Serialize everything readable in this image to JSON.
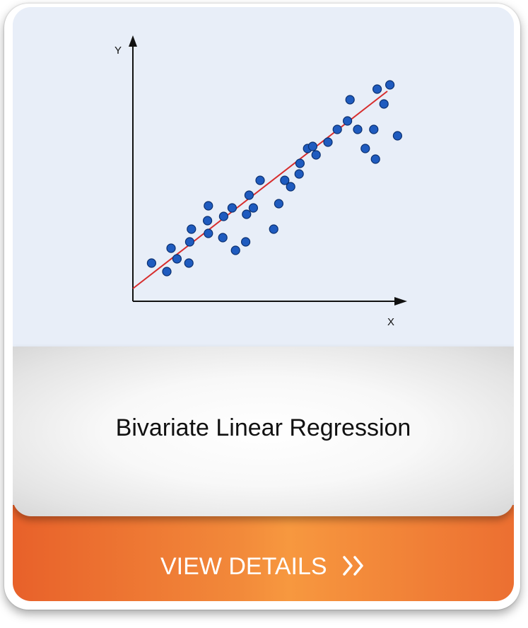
{
  "card": {
    "title": "Bivariate Linear Regression",
    "button_label": "VIEW DETAILS",
    "button_icon": "double-chevron-right-icon"
  },
  "chart_data": {
    "type": "scatter",
    "xlabel": "X",
    "ylabel": "Y",
    "points": [
      [
        22,
        18
      ],
      [
        40,
        14
      ],
      [
        45,
        25
      ],
      [
        52,
        20
      ],
      [
        66,
        18
      ],
      [
        67,
        28
      ],
      [
        69,
        34
      ],
      [
        88,
        38
      ],
      [
        89,
        32
      ],
      [
        89,
        45
      ],
      [
        106,
        30
      ],
      [
        107,
        40
      ],
      [
        117,
        44
      ],
      [
        121,
        24
      ],
      [
        133,
        28
      ],
      [
        134,
        41
      ],
      [
        137,
        50
      ],
      [
        150,
        57
      ],
      [
        142,
        44
      ],
      [
        166,
        34
      ],
      [
        172,
        46
      ],
      [
        179,
        57
      ],
      [
        186,
        54
      ],
      [
        196,
        60
      ],
      [
        197,
        65
      ],
      [
        206,
        72
      ],
      [
        212,
        73
      ],
      [
        216,
        69
      ],
      [
        230,
        75
      ],
      [
        241,
        81
      ],
      [
        253,
        85
      ],
      [
        256,
        95
      ],
      [
        265,
        81
      ],
      [
        284,
        81
      ],
      [
        296,
        93
      ],
      [
        288,
        100
      ],
      [
        312,
        78
      ],
      [
        274,
        72
      ],
      [
        286,
        67
      ],
      [
        303,
        102
      ]
    ],
    "trendline": {
      "slope": 0.2,
      "intercept": 6
    },
    "colors": {
      "points": "#1f5bbf",
      "point_outline": "#0a2f6f",
      "trendline": "#d72d2d",
      "axes": "#111111"
    }
  },
  "colors": {
    "panel_bg": "#e8eef8",
    "button_start": "#e8612a",
    "button_mid": "#f7983f",
    "title_text": "#111111",
    "button_text": "#ffffff"
  }
}
